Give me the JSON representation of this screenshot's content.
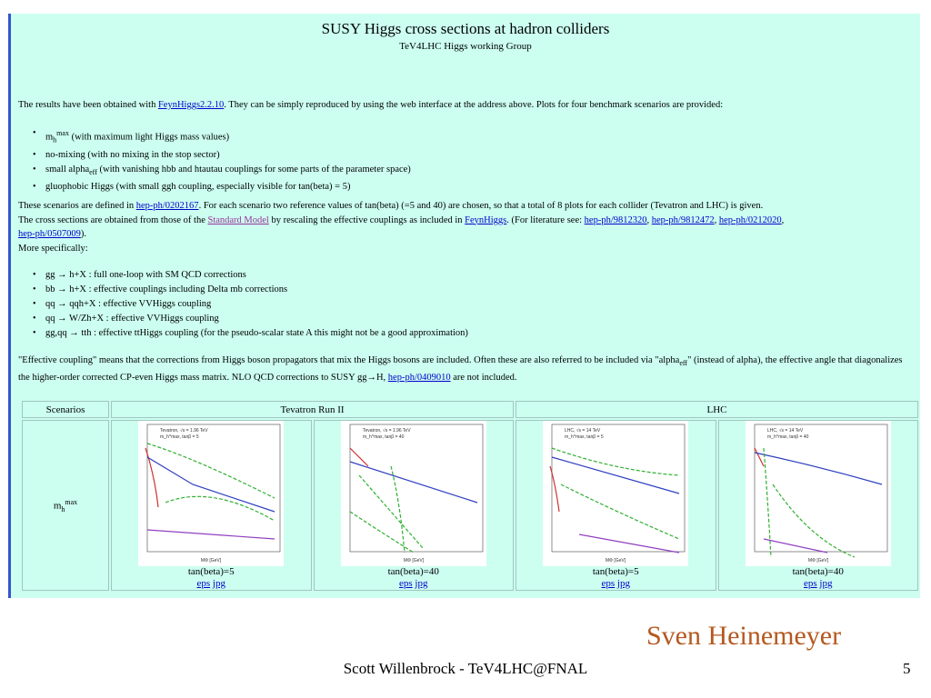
{
  "header": {
    "title": "SUSY Higgs cross sections at hadron colliders",
    "subtitle": "TeV4LHC Higgs working Group"
  },
  "intro": {
    "pre": "The results have been obtained with ",
    "link": "FeynHiggs2.2.10",
    "post": ". They can be simply reproduced by using the web interface at the address above. Plots for four benchmark scenarios are provided:"
  },
  "scenario_list": [
    {
      "main": "m",
      "sub": "h",
      "sup": "max",
      "rest": " (with maximum light Higgs mass values)"
    },
    {
      "main": "no-mixing",
      "sub": "",
      "sup": "",
      "rest": " (with no mixing in the stop sector)"
    },
    {
      "main": "small alpha",
      "sub": "eff",
      "sup": "",
      "rest": " (with vanishing hbb and htautau couplings for some parts of the parameter space)"
    },
    {
      "main": "gluophobic Higgs",
      "sub": "",
      "sup": "",
      "rest": " (with small ggh coupling, especially visible for tan(beta) = 5)"
    }
  ],
  "para2": {
    "a": "These scenarios are defined in ",
    "link1": "hep-ph/0202167",
    "b": ". For each scenario two reference values of tan(beta) (=5 and 40) are chosen, so that a total of 8 plots for each collider (Tevatron and LHC) is given.",
    "c": "The cross sections are obtained from those of the ",
    "link2": "Standard Model",
    "d": " by rescaling the effective couplings as included in ",
    "link3": "FeynHiggs",
    "e": ". (For literature see: ",
    "link4": "hep-ph/9812320",
    "sep1": ", ",
    "link5": "hep-ph/9812472",
    "sep2": ", ",
    "link6": "hep-ph/0212020",
    "sep3": ",",
    "link7": "hep-ph/0507009",
    "f": ").",
    "g": "More specifically:"
  },
  "process_list": [
    "gg → h+X : full one-loop with SM QCD corrections",
    "bb → h+X : effective couplings including Delta mb corrections",
    "qq → qqh+X : effective VVHiggs coupling",
    "qq → W/Zh+X : effective VVHiggs coupling",
    "gg,qq → tth : effective ttHiggs coupling (for the pseudo-scalar state A this might not be a good approximation)"
  ],
  "para3": {
    "a": "\"Effective coupling\" means that the corrections from Higgs boson propagators that mix the Higgs bosons are included. Often these are also referred to be included via \"alpha",
    "sub": "eff",
    "b": "\" (instead of alpha), the effective angle that diagonalizes the higher-order corrected CP-even Higgs mass matrix. NLO QCD corrections to SUSY gg→H, ",
    "link": "hep-ph/0409010",
    "c": " are not included."
  },
  "table": {
    "headers": [
      "Scenarios",
      "Tevatron Run II",
      "LHC"
    ],
    "row_label_main": "m",
    "row_label_sub": "h",
    "row_label_sup": "max",
    "plots": [
      {
        "caption": "tan(beta)=5",
        "eps": "eps",
        "jpg": "jpg",
        "legend": "Tevatron, √s = 1.96 TeV",
        "subleg": "m_h^max, tanβ = 5",
        "xlabel": "MΦ [GeV]"
      },
      {
        "caption": "tan(beta)=40",
        "eps": "eps",
        "jpg": "jpg",
        "legend": "Tevatron, √s = 1.96 TeV",
        "subleg": "m_h^max, tanβ = 40",
        "xlabel": "MΦ [GeV]"
      },
      {
        "caption": "tan(beta)=5",
        "eps": "eps",
        "jpg": "jpg",
        "legend": "LHC, √s = 14 TeV",
        "subleg": "m_h^max, tanβ = 5",
        "xlabel": "MΦ [GeV]"
      },
      {
        "caption": "tan(beta)=40",
        "eps": "eps",
        "jpg": "jpg",
        "legend": "LHC, √s = 14 TeV",
        "subleg": "m_h^max, tanβ = 40",
        "xlabel": "MΦ [GeV]"
      }
    ]
  },
  "slide": {
    "author": "Sven Heinemeyer",
    "footer": "Scott Willenbrock - TeV4LHC@FNAL",
    "page": "5"
  },
  "colors": {
    "accent_bar": "#3355cc",
    "page_bg": "#ccfff0",
    "author": "#b5581f"
  }
}
